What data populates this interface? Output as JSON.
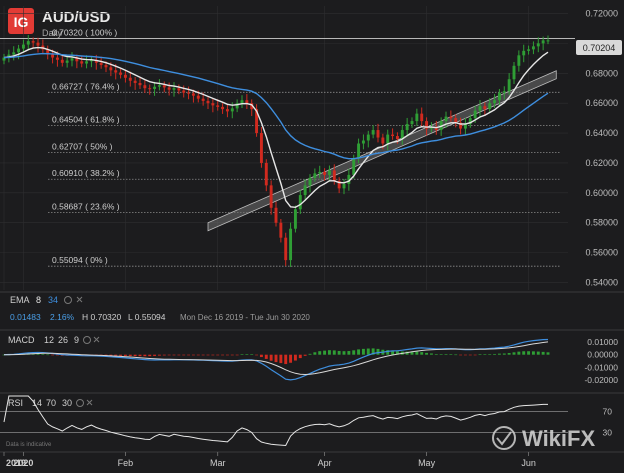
{
  "header": {
    "logo_text": "IG",
    "symbol": "AUD/USD",
    "interval": "Daily",
    "current_price": "0.70204"
  },
  "chart_data": [
    {
      "type": "candlestick",
      "title": "AUD/USD",
      "subtitle": "Daily",
      "x_tick_labels": [
        "2019",
        "2020",
        "Feb",
        "Mar",
        "Apr",
        "May",
        "Jun"
      ],
      "y_tick_labels": [
        "0.72000",
        "0.70000",
        "0.68000",
        "0.66000",
        "0.64000",
        "0.62000",
        "0.60000",
        "0.58000",
        "0.56000",
        "0.54000"
      ],
      "ylim": [
        0.535,
        0.725
      ],
      "fibonacci_levels": [
        {
          "label": "0.70320 ( 100% )",
          "value": 0.7032
        },
        {
          "label": "0.66727 ( 76.4% )",
          "value": 0.66727
        },
        {
          "label": "0.64504 ( 61.8% )",
          "value": 0.64504
        },
        {
          "label": "0.62707 ( 50% )",
          "value": 0.62707
        },
        {
          "label": "0.60910 ( 38.2% )",
          "value": 0.6091
        },
        {
          "label": "0.58687 ( 23.6% )",
          "value": 0.58687
        },
        {
          "label": "0.55094 ( 0% )",
          "value": 0.55094
        }
      ],
      "closes": [
        0.6905,
        0.6925,
        0.694,
        0.6965,
        0.6992,
        0.7015,
        0.7005,
        0.6985,
        0.696,
        0.6925,
        0.6905,
        0.689,
        0.687,
        0.6885,
        0.69,
        0.688,
        0.6865,
        0.688,
        0.689,
        0.687,
        0.6855,
        0.684,
        0.682,
        0.6805,
        0.679,
        0.677,
        0.675,
        0.6735,
        0.672,
        0.67,
        0.6695,
        0.671,
        0.672,
        0.6705,
        0.669,
        0.67,
        0.6685,
        0.667,
        0.6665,
        0.665,
        0.663,
        0.6615,
        0.66,
        0.6585,
        0.6575,
        0.656,
        0.6545,
        0.6565,
        0.66,
        0.662,
        0.66,
        0.656,
        0.64,
        0.62,
        0.605,
        0.59,
        0.58,
        0.57,
        0.555,
        0.576,
        0.589,
        0.5985,
        0.605,
        0.61,
        0.613,
        0.614,
        0.612,
        0.615,
        0.608,
        0.603,
        0.606,
        0.612,
        0.623,
        0.633,
        0.635,
        0.639,
        0.642,
        0.637,
        0.633,
        0.639,
        0.638,
        0.636,
        0.642,
        0.646,
        0.648,
        0.653,
        0.648,
        0.643,
        0.644,
        0.642,
        0.648,
        0.651,
        0.65,
        0.647,
        0.643,
        0.646,
        0.65,
        0.655,
        0.658,
        0.656,
        0.66,
        0.662,
        0.667,
        0.668,
        0.676,
        0.685,
        0.692,
        0.695,
        0.696,
        0.698,
        0.7,
        0.702,
        0.702
      ],
      "ema": [
        {
          "name": "EMA 8",
          "color": "#e6e6e6",
          "period": 8
        },
        {
          "name": "EMA 34",
          "color": "#3e8ede",
          "period": 34
        }
      ],
      "trendline": [
        {
          "x": 42,
          "y": 0.58
        },
        {
          "x": 110,
          "y": 0.673
        }
      ]
    },
    {
      "type": "line",
      "title": "MACD",
      "params": [
        "12",
        "26",
        "9"
      ],
      "y_tick_labels": [
        "0.01000",
        "0.00000",
        "-0.01000",
        "-0.02000"
      ],
      "ylim": [
        -0.028,
        0.018
      ]
    },
    {
      "type": "line",
      "title": "RSI",
      "params": [
        "14",
        "70",
        "30"
      ],
      "y_tick_labels": [
        "70",
        "30"
      ],
      "ylim": [
        0,
        100
      ]
    }
  ],
  "ema_panel": {
    "label": "EMA",
    "fast": "8",
    "slow": "34",
    "val1": "0.01483",
    "val2": "2.16%",
    "high": "H 0.70320",
    "low": "L 0.55094",
    "range": "Mon Dec 16 2019 - Tue Jun 30 2020"
  },
  "footer": {
    "disclaimer": "Data is indicative",
    "watermark": "WikiFX"
  },
  "colors": {
    "up": "#2f9e35",
    "down": "#d12a1f",
    "bg": "#1c1c1e",
    "grid": "#2e2e30",
    "fib": "#8a8a8a",
    "ema8": "#e6e6e6",
    "ema34": "#3e8ede",
    "macd_line": "#3e8ede",
    "signal_line": "#d8d8d8",
    "rsi_line": "#e6e6e6"
  }
}
